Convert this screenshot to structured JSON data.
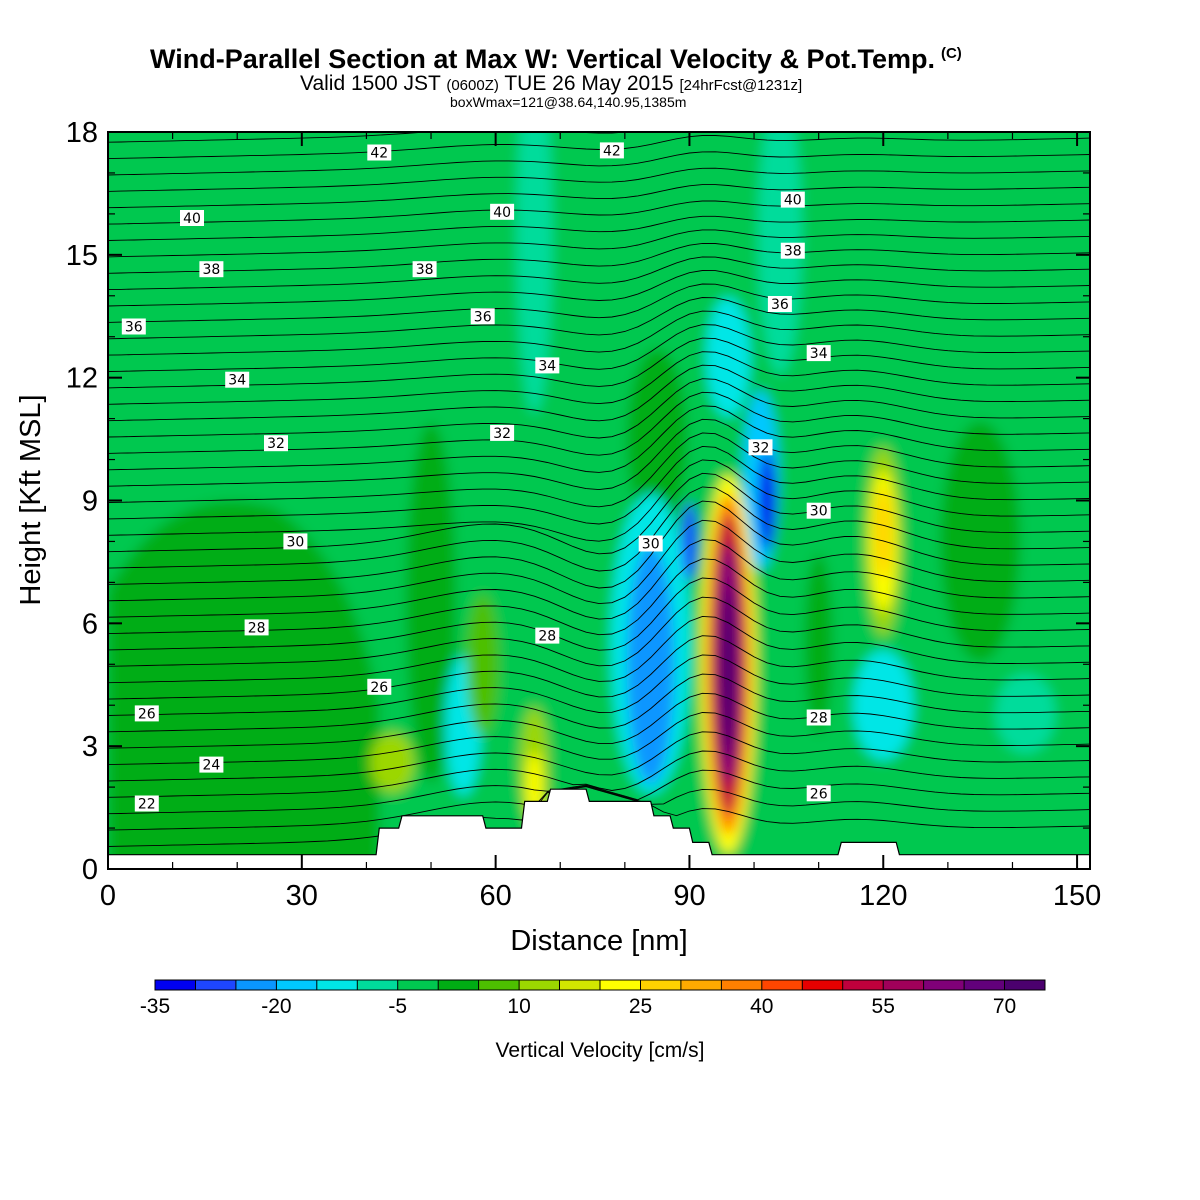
{
  "header": {
    "title": "Wind-Parallel Section at Max W: Vertical Velocity & Pot.Temp.",
    "copyright": "(C)",
    "valid_prefix": "Valid 1500 JST",
    "valid_utc": "(0600Z)",
    "valid_date": "TUE 26 May 2015",
    "forecast": "[24hrFcst@1231z]",
    "boxwmax": "boxWmax=121@38.64,140.95,1385m"
  },
  "chart_data": {
    "type": "heatmap",
    "title": "Wind-Parallel Section at Max W: Vertical Velocity & Pot.Temp.",
    "xlabel": "Distance [nm]",
    "ylabel": "Height [Kft MSL]",
    "xlim": [
      0,
      152
    ],
    "ylim": [
      0,
      18
    ],
    "x_ticks": [
      "0",
      "30",
      "60",
      "90",
      "120",
      "150"
    ],
    "y_ticks": [
      "0",
      "3",
      "6",
      "9",
      "12",
      "15",
      "18"
    ],
    "x_tick_values": [
      0,
      30,
      60,
      90,
      120,
      150
    ],
    "y_tick_values": [
      0,
      3,
      6,
      9,
      12,
      15,
      18
    ],
    "colorbar": {
      "label": "Vertical Velocity [cm/s]",
      "min": -35,
      "max": 75,
      "step": 5,
      "tick_labels": [
        "-35",
        "-20",
        "-5",
        "10",
        "25",
        "40",
        "55",
        "70"
      ],
      "tick_values": [
        -35,
        -20,
        -5,
        10,
        25,
        40,
        55,
        70
      ],
      "colors": [
        "#0000f0",
        "#1e46ff",
        "#0a96ff",
        "#00c8ff",
        "#00e6e6",
        "#00dc9b",
        "#00c850",
        "#00ad14",
        "#4dc000",
        "#9bd700",
        "#d2e600",
        "#ffff00",
        "#ffd200",
        "#ffaa00",
        "#ff8000",
        "#ff4600",
        "#e60000",
        "#c0003c",
        "#a0005a",
        "#800078",
        "#62007b",
        "#4b006e"
      ]
    },
    "velocity_features": [
      {
        "kind": "updraft",
        "x": 96,
        "y": 5.0,
        "peak": 70
      },
      {
        "kind": "updraft",
        "x": 120,
        "y": 8.0,
        "peak": 25
      },
      {
        "kind": "updraft",
        "x": 66,
        "y": 2.0,
        "peak": 20
      },
      {
        "kind": "updraft",
        "x": 44,
        "y": 2.5,
        "peak": 10
      },
      {
        "kind": "downdraft",
        "x": 84,
        "y": 5.0,
        "peak": -25
      },
      {
        "kind": "downdraft",
        "x": 101,
        "y": 9.0,
        "peak": -35
      },
      {
        "kind": "downdraft",
        "x": 90,
        "y": 8.0,
        "peak": -30
      },
      {
        "kind": "downdraft",
        "x": 56,
        "y": 3.0,
        "peak": -15
      }
    ],
    "isentropes": {
      "units": "C",
      "labeled_values": [
        "22",
        "24",
        "26",
        "28",
        "30",
        "32",
        "34",
        "36",
        "38",
        "40",
        "42"
      ],
      "labels": [
        {
          "text": "42",
          "x": 42,
          "y": 17.5
        },
        {
          "text": "42",
          "x": 78,
          "y": 17.55
        },
        {
          "text": "40",
          "x": 13,
          "y": 15.9
        },
        {
          "text": "40",
          "x": 61,
          "y": 16.05
        },
        {
          "text": "40",
          "x": 106,
          "y": 16.35
        },
        {
          "text": "38",
          "x": 16,
          "y": 14.65
        },
        {
          "text": "38",
          "x": 49,
          "y": 14.65
        },
        {
          "text": "38",
          "x": 106,
          "y": 15.1
        },
        {
          "text": "36",
          "x": 4,
          "y": 13.25
        },
        {
          "text": "36",
          "x": 58,
          "y": 13.5
        },
        {
          "text": "36",
          "x": 104,
          "y": 13.8
        },
        {
          "text": "34",
          "x": 20,
          "y": 11.95
        },
        {
          "text": "34",
          "x": 68,
          "y": 12.3
        },
        {
          "text": "34",
          "x": 110,
          "y": 12.6
        },
        {
          "text": "32",
          "x": 26,
          "y": 10.4
        },
        {
          "text": "32",
          "x": 61,
          "y": 10.65
        },
        {
          "text": "32",
          "x": 101,
          "y": 10.3
        },
        {
          "text": "30",
          "x": 29,
          "y": 8.0
        },
        {
          "text": "30",
          "x": 84,
          "y": 7.95
        },
        {
          "text": "30",
          "x": 110,
          "y": 8.75
        },
        {
          "text": "28",
          "x": 23,
          "y": 5.9
        },
        {
          "text": "28",
          "x": 68,
          "y": 5.7
        },
        {
          "text": "28",
          "x": 110,
          "y": 3.7
        },
        {
          "text": "26",
          "x": 42,
          "y": 4.45
        },
        {
          "text": "26",
          "x": 6,
          "y": 3.8
        },
        {
          "text": "26",
          "x": 110,
          "y": 1.85
        },
        {
          "text": "24",
          "x": 16,
          "y": 2.55
        },
        {
          "text": "22",
          "x": 6,
          "y": 1.6
        }
      ]
    },
    "terrain": [
      [
        0,
        0.35
      ],
      [
        41.5,
        0.35
      ],
      [
        42,
        1.0
      ],
      [
        45,
        1.0
      ],
      [
        45.5,
        1.3
      ],
      [
        58,
        1.3
      ],
      [
        58.5,
        1.0
      ],
      [
        64,
        1.0
      ],
      [
        64.5,
        1.65
      ],
      [
        68,
        1.65
      ],
      [
        68.5,
        1.95
      ],
      [
        74,
        1.95
      ],
      [
        74.5,
        1.65
      ],
      [
        84,
        1.65
      ],
      [
        84.5,
        1.3
      ],
      [
        87,
        1.3
      ],
      [
        87.5,
        1.0
      ],
      [
        90,
        1.0
      ],
      [
        90.5,
        0.65
      ],
      [
        93,
        0.65
      ],
      [
        93.5,
        0.35
      ],
      [
        113,
        0.35
      ],
      [
        113.5,
        0.65
      ],
      [
        122,
        0.65
      ],
      [
        122.5,
        0.35
      ],
      [
        152,
        0.35
      ]
    ]
  }
}
